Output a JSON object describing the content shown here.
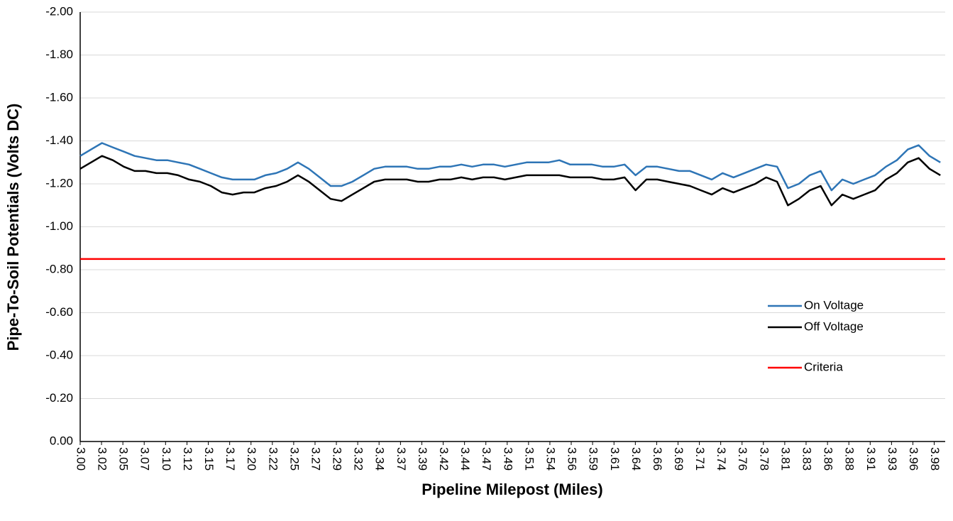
{
  "chart_data": {
    "type": "line",
    "xlabel": "Pipeline Milepost (Miles)",
    "ylabel": "Pipe-To-Soil Potentials (Volts DC)",
    "x": [
      3.0,
      3.0125,
      3.025,
      3.0375,
      3.05,
      3.0625,
      3.075,
      3.0875,
      3.1,
      3.1125,
      3.125,
      3.1375,
      3.15,
      3.1625,
      3.175,
      3.1875,
      3.2,
      3.2125,
      3.225,
      3.2375,
      3.25,
      3.2625,
      3.275,
      3.2875,
      3.3,
      3.3125,
      3.325,
      3.3375,
      3.35,
      3.3625,
      3.375,
      3.3875,
      3.4,
      3.4125,
      3.425,
      3.4375,
      3.45,
      3.4625,
      3.475,
      3.4875,
      3.5,
      3.5125,
      3.525,
      3.5375,
      3.55,
      3.5625,
      3.575,
      3.5875,
      3.6,
      3.6125,
      3.625,
      3.6375,
      3.65,
      3.6625,
      3.675,
      3.6875,
      3.7,
      3.7125,
      3.725,
      3.7375,
      3.75,
      3.7625,
      3.775,
      3.7875,
      3.8,
      3.8125,
      3.825,
      3.8375,
      3.85,
      3.8625,
      3.875,
      3.8875,
      3.9,
      3.9125,
      3.925,
      3.9375,
      3.95,
      3.9625,
      3.975,
      3.9875
    ],
    "series": [
      {
        "name": "On Voltage",
        "color": "#2e75b6",
        "values": [
          -1.33,
          -1.36,
          -1.39,
          -1.37,
          -1.35,
          -1.33,
          -1.32,
          -1.31,
          -1.31,
          -1.3,
          -1.29,
          -1.27,
          -1.25,
          -1.23,
          -1.22,
          -1.22,
          -1.22,
          -1.24,
          -1.25,
          -1.27,
          -1.3,
          -1.27,
          -1.23,
          -1.19,
          -1.19,
          -1.21,
          -1.24,
          -1.27,
          -1.28,
          -1.28,
          -1.28,
          -1.27,
          -1.27,
          -1.28,
          -1.28,
          -1.29,
          -1.28,
          -1.29,
          -1.29,
          -1.28,
          -1.29,
          -1.3,
          -1.3,
          -1.3,
          -1.31,
          -1.29,
          -1.29,
          -1.29,
          -1.28,
          -1.28,
          -1.29,
          -1.24,
          -1.28,
          -1.28,
          -1.27,
          -1.26,
          -1.26,
          -1.24,
          -1.22,
          -1.25,
          -1.23,
          -1.25,
          -1.27,
          -1.29,
          -1.28,
          -1.18,
          -1.2,
          -1.24,
          -1.26,
          -1.17,
          -1.22,
          -1.2,
          -1.22,
          -1.24,
          -1.28,
          -1.31,
          -1.36,
          -1.38,
          -1.33,
          -1.3
        ]
      },
      {
        "name": "Off Voltage",
        "color": "#000000",
        "values": [
          -1.27,
          -1.3,
          -1.33,
          -1.31,
          -1.28,
          -1.26,
          -1.26,
          -1.25,
          -1.25,
          -1.24,
          -1.22,
          -1.21,
          -1.19,
          -1.16,
          -1.15,
          -1.16,
          -1.16,
          -1.18,
          -1.19,
          -1.21,
          -1.24,
          -1.21,
          -1.17,
          -1.13,
          -1.12,
          -1.15,
          -1.18,
          -1.21,
          -1.22,
          -1.22,
          -1.22,
          -1.21,
          -1.21,
          -1.22,
          -1.22,
          -1.23,
          -1.22,
          -1.23,
          -1.23,
          -1.22,
          -1.23,
          -1.24,
          -1.24,
          -1.24,
          -1.24,
          -1.23,
          -1.23,
          -1.23,
          -1.22,
          -1.22,
          -1.23,
          -1.17,
          -1.22,
          -1.22,
          -1.21,
          -1.2,
          -1.19,
          -1.17,
          -1.15,
          -1.18,
          -1.16,
          -1.18,
          -1.2,
          -1.23,
          -1.21,
          -1.1,
          -1.13,
          -1.17,
          -1.19,
          -1.1,
          -1.15,
          -1.13,
          -1.15,
          -1.17,
          -1.22,
          -1.25,
          -1.3,
          -1.32,
          -1.27,
          -1.24
        ]
      },
      {
        "name": "Criteria",
        "color": "#ff0000",
        "x": [
          3.0,
          3.993
        ],
        "values": [
          -0.85,
          -0.85
        ]
      }
    ],
    "xlim": [
      3.0,
      3.993
    ],
    "xticks": [
      {
        "value": 3.0,
        "label": "3.00"
      },
      {
        "value": 3.0245,
        "label": "3.02"
      },
      {
        "value": 3.049,
        "label": "3.05"
      },
      {
        "value": 3.0735,
        "label": "3.07"
      },
      {
        "value": 3.098,
        "label": "3.10"
      },
      {
        "value": 3.1226,
        "label": "3.12"
      },
      {
        "value": 3.1471,
        "label": "3.15"
      },
      {
        "value": 3.1716,
        "label": "3.17"
      },
      {
        "value": 3.1961,
        "label": "3.20"
      },
      {
        "value": 3.2206,
        "label": "3.22"
      },
      {
        "value": 3.2451,
        "label": "3.25"
      },
      {
        "value": 3.2696,
        "label": "3.27"
      },
      {
        "value": 3.2941,
        "label": "3.29"
      },
      {
        "value": 3.3186,
        "label": "3.32"
      },
      {
        "value": 3.3431,
        "label": "3.34"
      },
      {
        "value": 3.3677,
        "label": "3.37"
      },
      {
        "value": 3.3922,
        "label": "3.39"
      },
      {
        "value": 3.4167,
        "label": "3.42"
      },
      {
        "value": 3.4412,
        "label": "3.44"
      },
      {
        "value": 3.4657,
        "label": "3.47"
      },
      {
        "value": 3.4902,
        "label": "3.49"
      },
      {
        "value": 3.5147,
        "label": "3.51"
      },
      {
        "value": 3.5392,
        "label": "3.54"
      },
      {
        "value": 3.5637,
        "label": "3.56"
      },
      {
        "value": 3.5882,
        "label": "3.59"
      },
      {
        "value": 3.6128,
        "label": "3.61"
      },
      {
        "value": 3.6373,
        "label": "3.64"
      },
      {
        "value": 3.6618,
        "label": "3.66"
      },
      {
        "value": 3.6863,
        "label": "3.69"
      },
      {
        "value": 3.7108,
        "label": "3.71"
      },
      {
        "value": 3.7353,
        "label": "3.74"
      },
      {
        "value": 3.7598,
        "label": "3.76"
      },
      {
        "value": 3.7843,
        "label": "3.78"
      },
      {
        "value": 3.8088,
        "label": "3.81"
      },
      {
        "value": 3.8333,
        "label": "3.83"
      },
      {
        "value": 3.8579,
        "label": "3.86"
      },
      {
        "value": 3.8824,
        "label": "3.88"
      },
      {
        "value": 3.9069,
        "label": "3.91"
      },
      {
        "value": 3.9314,
        "label": "3.93"
      },
      {
        "value": 3.9559,
        "label": "3.96"
      },
      {
        "value": 3.9804,
        "label": "3.98"
      }
    ],
    "ylim": [
      0,
      -2
    ],
    "yticks": [
      {
        "value": 0,
        "label": "0.00"
      },
      {
        "value": -0.2,
        "label": "-0.20"
      },
      {
        "value": -0.4,
        "label": "-0.40"
      },
      {
        "value": -0.6,
        "label": "-0.60"
      },
      {
        "value": -0.8,
        "label": "-0.80"
      },
      {
        "value": -1.0,
        "label": "-1.00"
      },
      {
        "value": -1.2,
        "label": "-1.20"
      },
      {
        "value": -1.4,
        "label": "-1.40"
      },
      {
        "value": -1.6,
        "label": "-1.60"
      },
      {
        "value": -1.8,
        "label": "-1.80"
      },
      {
        "value": -2.0,
        "label": "-2.00"
      }
    ],
    "grid": true,
    "legend": "right"
  }
}
